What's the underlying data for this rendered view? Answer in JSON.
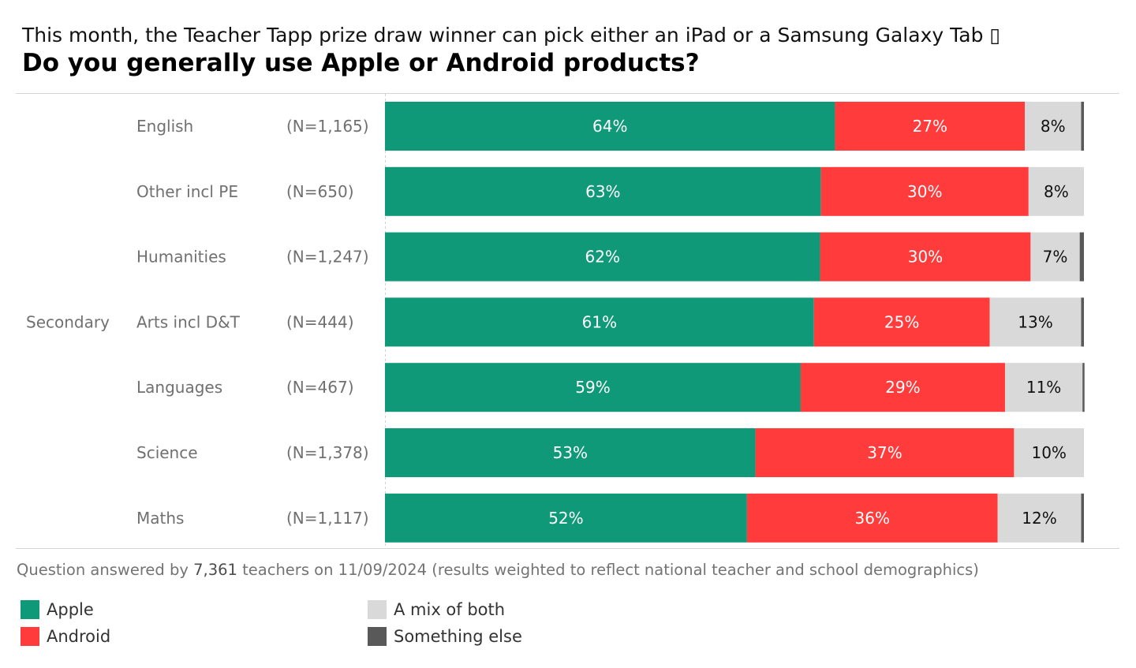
{
  "header": {
    "subtitle": "This month, the Teacher Tapp prize draw winner can pick either an iPad or a Samsung Galaxy Tab ▯",
    "title": "Do you generally use Apple or Android products?"
  },
  "footer": {
    "prefix": "Question answered by ",
    "respondents": "7,361",
    "suffix": " teachers on 11/09/2024 (results weighted to reflect national teacher and school demographics)"
  },
  "colors": {
    "Apple": "#109978",
    "Android": "#FF3B3B",
    "A mix of both": "#D9D9D9",
    "Something else": "#595959"
  },
  "chart_data": {
    "type": "bar",
    "orientation": "horizontal",
    "stacked": true,
    "normalized": true,
    "title": "Do you generally use Apple or Android products?",
    "xlabel": "",
    "ylabel": "",
    "xlim": [
      0,
      100
    ],
    "grid": false,
    "legend_position": "bottom-left",
    "group_label": "Secondary",
    "categories": [
      "English",
      "Other incl PE",
      "Humanities",
      "Arts incl D&T",
      "Languages",
      "Science",
      "Maths"
    ],
    "sample_sizes": [
      "(N=1,165)",
      "(N=650)",
      "(N=1,247)",
      "(N=444)",
      "(N=467)",
      "(N=1,378)",
      "(N=1,117)"
    ],
    "series": [
      {
        "name": "Apple",
        "values": [
          64,
          63,
          62,
          61,
          59,
          53,
          52
        ],
        "labels": [
          "64%",
          "63%",
          "62%",
          "61%",
          "59%",
          "53%",
          "52%"
        ]
      },
      {
        "name": "Android",
        "values": [
          27,
          30,
          30,
          25,
          29,
          37,
          36
        ],
        "labels": [
          "27%",
          "30%",
          "30%",
          "25%",
          "29%",
          "37%",
          "36%"
        ]
      },
      {
        "name": "A mix of both",
        "values": [
          8,
          8,
          7,
          13,
          11,
          10,
          12
        ],
        "labels": [
          "8%",
          "8%",
          "7%",
          "13%",
          "11%",
          "10%",
          "12%"
        ]
      },
      {
        "name": "Something else",
        "values": [
          0.4,
          0,
          0.6,
          0.4,
          0.2,
          0,
          0.4
        ],
        "labels": [
          "",
          "",
          "",
          "",
          "",
          "",
          ""
        ]
      }
    ]
  },
  "legend": [
    {
      "name": "Apple",
      "label": "Apple"
    },
    {
      "name": "Android",
      "label": "Android"
    },
    {
      "name": "A mix of both",
      "label": "A mix of both"
    },
    {
      "name": "Something else",
      "label": "Something else"
    }
  ]
}
